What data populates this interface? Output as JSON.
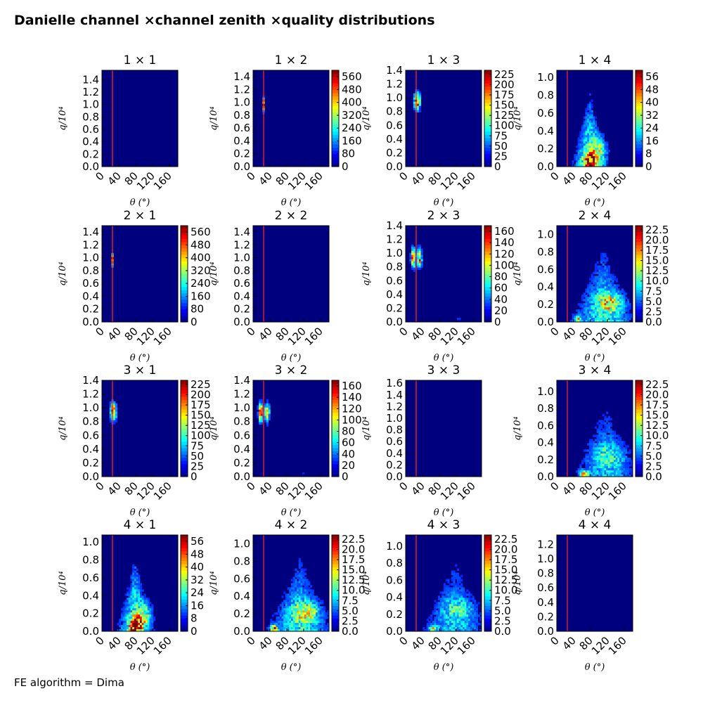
{
  "title": "Danielle channel ×channel zenith ×quality distributions",
  "footer": "FE algorithm = Dima",
  "colors": {
    "background": "#00007f",
    "cut_line": "#ff2020"
  },
  "chart_data": {
    "type": "heatmap",
    "colormap": "jet",
    "xlabel": "θ (°)",
    "ylabel": "q/10⁴",
    "xlim": [
      0,
      180
    ],
    "x_ticks": [
      "0",
      "40",
      "80",
      "120",
      "160"
    ],
    "cut_line_x": 25,
    "panels": [
      {
        "title": "1  × 1",
        "ylim": [
          0,
          1.55
        ],
        "y_ticks": [
          "0.0",
          "0.2",
          "0.4",
          "0.6",
          "0.8",
          "1.0",
          "1.2",
          "1.4"
        ],
        "colorbar": null,
        "pattern": "empty"
      },
      {
        "title": "1  × 2",
        "ylim": [
          0,
          1.5
        ],
        "y_ticks": [
          "0.0",
          "0.2",
          "0.4",
          "0.6",
          "0.8",
          "1.0",
          "1.2",
          "1.4"
        ],
        "colorbar": {
          "max": 600,
          "ticks": [
            "0",
            "80",
            "160",
            "240",
            "320",
            "400",
            "480",
            "560"
          ]
        },
        "pattern": "narrow-peak"
      },
      {
        "title": "1  × 3",
        "ylim": [
          0,
          1.4
        ],
        "y_ticks": [
          "0.0",
          "0.2",
          "0.4",
          "0.6",
          "0.8",
          "1.0",
          "1.2",
          "1.4"
        ],
        "colorbar": {
          "max": 235,
          "ticks": [
            "0",
            "25",
            "50",
            "75",
            "100",
            "125",
            "150",
            "175",
            "200",
            "225"
          ]
        },
        "pattern": "wide-peak"
      },
      {
        "title": "1  × 4",
        "ylim": [
          0,
          1.08
        ],
        "y_ticks": [
          "0.0",
          "0.2",
          "0.4",
          "0.6",
          "0.8",
          "1.0"
        ],
        "colorbar": {
          "max": 60,
          "ticks": [
            "0",
            "8",
            "16",
            "24",
            "32",
            "40",
            "48",
            "56"
          ]
        },
        "pattern": "triangle-narrow"
      },
      {
        "title": "2  × 1",
        "ylim": [
          0,
          1.5
        ],
        "y_ticks": [
          "0.0",
          "0.2",
          "0.4",
          "0.6",
          "0.8",
          "1.0",
          "1.2",
          "1.4"
        ],
        "colorbar": {
          "max": 600,
          "ticks": [
            "0",
            "80",
            "160",
            "240",
            "320",
            "400",
            "480",
            "560"
          ]
        },
        "pattern": "narrow-peak"
      },
      {
        "title": "2  × 2",
        "ylim": [
          0,
          1.5
        ],
        "y_ticks": [
          "0.0",
          "0.2",
          "0.4",
          "0.6",
          "0.8",
          "1.0",
          "1.2",
          "1.4"
        ],
        "colorbar": null,
        "pattern": "empty"
      },
      {
        "title": "2  × 3",
        "ylim": [
          0,
          1.4
        ],
        "y_ticks": [
          "0.0",
          "0.2",
          "0.4",
          "0.6",
          "0.8",
          "1.0",
          "1.2",
          "1.4"
        ],
        "colorbar": {
          "max": 170,
          "ticks": [
            "0",
            "20",
            "40",
            "60",
            "80",
            "100",
            "120",
            "140",
            "160"
          ]
        },
        "pattern": "double-peak"
      },
      {
        "title": "2  × 4",
        "ylim": [
          0,
          1.1
        ],
        "y_ticks": [
          "0.0",
          "0.2",
          "0.4",
          "0.6",
          "0.8",
          "1.0"
        ],
        "colorbar": {
          "max": 23.5,
          "ticks": [
            "0.0",
            "2.5",
            "5.0",
            "7.5",
            "10.0",
            "12.5",
            "15.0",
            "17.5",
            "20.0",
            "22.5"
          ]
        },
        "pattern": "triangle-wide"
      },
      {
        "title": "3  × 1",
        "ylim": [
          0,
          1.4
        ],
        "y_ticks": [
          "0.0",
          "0.2",
          "0.4",
          "0.6",
          "0.8",
          "1.0",
          "1.2",
          "1.4"
        ],
        "colorbar": {
          "max": 235,
          "ticks": [
            "0",
            "25",
            "50",
            "75",
            "100",
            "125",
            "150",
            "175",
            "200",
            "225"
          ]
        },
        "pattern": "wide-peak"
      },
      {
        "title": "3  × 2",
        "ylim": [
          0,
          1.4
        ],
        "y_ticks": [
          "0.0",
          "0.2",
          "0.4",
          "0.6",
          "0.8",
          "1.0",
          "1.2",
          "1.4"
        ],
        "colorbar": {
          "max": 170,
          "ticks": [
            "0",
            "20",
            "40",
            "60",
            "80",
            "100",
            "120",
            "140",
            "160"
          ]
        },
        "pattern": "double-peak"
      },
      {
        "title": "3  × 3",
        "ylim": [
          0,
          1.65
        ],
        "y_ticks": [
          "0.0",
          "0.2",
          "0.4",
          "0.6",
          "0.8",
          "1.0",
          "1.2",
          "1.4",
          "1.6"
        ],
        "colorbar": null,
        "pattern": "empty"
      },
      {
        "title": "3  × 4",
        "ylim": [
          0,
          1.13
        ],
        "y_ticks": [
          "0.0",
          "0.2",
          "0.4",
          "0.6",
          "0.8",
          "1.0"
        ],
        "colorbar": {
          "max": 23.5,
          "ticks": [
            "0.0",
            "2.5",
            "5.0",
            "7.5",
            "10.0",
            "12.5",
            "15.0",
            "17.5",
            "20.0",
            "22.5"
          ]
        },
        "pattern": "triangle-sparse"
      },
      {
        "title": "4  × 1",
        "ylim": [
          0,
          1.08
        ],
        "y_ticks": [
          "0.0",
          "0.2",
          "0.4",
          "0.6",
          "0.8",
          "1.0"
        ],
        "colorbar": {
          "max": 60,
          "ticks": [
            "0",
            "8",
            "16",
            "24",
            "32",
            "40",
            "48",
            "56"
          ]
        },
        "pattern": "triangle-narrow"
      },
      {
        "title": "4  × 2",
        "ylim": [
          0,
          1.1
        ],
        "y_ticks": [
          "0.0",
          "0.2",
          "0.4",
          "0.6",
          "0.8",
          "1.0"
        ],
        "colorbar": {
          "max": 23.5,
          "ticks": [
            "0.0",
            "2.5",
            "5.0",
            "7.5",
            "10.0",
            "12.5",
            "15.0",
            "17.5",
            "20.0",
            "22.5"
          ]
        },
        "pattern": "triangle-wide"
      },
      {
        "title": "4  × 3",
        "ylim": [
          0,
          1.13
        ],
        "y_ticks": [
          "0.0",
          "0.2",
          "0.4",
          "0.6",
          "0.8",
          "1.0"
        ],
        "colorbar": {
          "max": 23.5,
          "ticks": [
            "0.0",
            "2.5",
            "5.0",
            "7.5",
            "10.0",
            "12.5",
            "15.0",
            "17.5",
            "20.0",
            "22.5"
          ]
        },
        "pattern": "triangle-sparse"
      },
      {
        "title": "4  × 4",
        "ylim": [
          0,
          1.33
        ],
        "y_ticks": [
          "0.0",
          "0.2",
          "0.4",
          "0.6",
          "0.8",
          "1.0",
          "1.2"
        ],
        "colorbar": null,
        "pattern": "empty"
      }
    ]
  }
}
